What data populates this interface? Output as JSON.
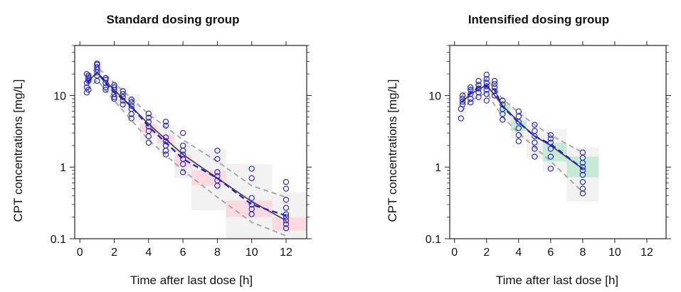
{
  "chart_data": [
    {
      "type": "scatter",
      "title": "Standard dosing group",
      "xlabel": "Time after last dose [h]",
      "ylabel": "CPT concentrations [mg/L]",
      "xlim": [
        -0.3,
        13.2
      ],
      "ylim": [
        0.1,
        50
      ],
      "yscale": "log",
      "xticks": [
        0,
        2,
        4,
        6,
        8,
        10,
        12
      ],
      "xtick_labels": [
        "0",
        "2",
        "4",
        "6",
        "8",
        "10",
        "12"
      ],
      "yticks": [
        0.1,
        1,
        10
      ],
      "ytick_labels": [
        "0.1",
        "1",
        "10"
      ],
      "shade_colors": {
        "observed_band": "#f2f2f2",
        "median_flag": "#fad9e0"
      },
      "bins": [
        {
          "x0": 0.3,
          "x1": 0.7,
          "lo": [
            11.5,
            13
          ],
          "mid": [
            13,
            19
          ],
          "hi": [
            17,
            21
          ],
          "flag": false
        },
        {
          "x0": 0.7,
          "x1": 1.3,
          "lo": [
            15,
            18
          ],
          "mid": [
            19,
            25
          ],
          "hi": [
            22,
            29
          ],
          "flag": false
        },
        {
          "x0": 1.3,
          "x1": 1.8,
          "lo": [
            10,
            12.5
          ],
          "mid": [
            12.5,
            16.5
          ],
          "hi": [
            15.5,
            19
          ],
          "flag": false
        },
        {
          "x0": 1.8,
          "x1": 2.3,
          "lo": [
            7.5,
            9.5
          ],
          "mid": [
            9.5,
            13.5
          ],
          "hi": [
            12.5,
            16
          ],
          "flag": false
        },
        {
          "x0": 2.3,
          "x1": 2.8,
          "lo": [
            6,
            7.5
          ],
          "mid": [
            7.5,
            11
          ],
          "hi": [
            9.5,
            13
          ],
          "flag": false
        },
        {
          "x0": 2.8,
          "x1": 3.5,
          "lo": [
            4.2,
            5.5
          ],
          "mid": [
            5.5,
            8.5
          ],
          "hi": [
            7.5,
            10.5
          ],
          "flag": false
        },
        {
          "x0": 3.5,
          "x1": 4.5,
          "lo": [
            2.3,
            3.0
          ],
          "mid": [
            3.0,
            4.5
          ],
          "hi": [
            4.0,
            5.5
          ],
          "flag": true
        },
        {
          "x0": 4.5,
          "x1": 5.5,
          "lo": [
            1.6,
            2.1
          ],
          "mid": [
            2.1,
            3.1
          ],
          "hi": [
            2.8,
            3.8
          ],
          "flag": true
        },
        {
          "x0": 5.5,
          "x1": 6.5,
          "lo": [
            0.7,
            1.0
          ],
          "mid": [
            1.0,
            1.7
          ],
          "hi": [
            1.5,
            2.2
          ],
          "flag": true
        },
        {
          "x0": 6.5,
          "x1": 8.5,
          "lo": [
            0.25,
            0.55
          ],
          "mid": [
            0.55,
            1.0
          ],
          "hi": [
            0.9,
            1.8
          ],
          "flag": true
        },
        {
          "x0": 8.5,
          "x1": 11.2,
          "lo": [
            0.1,
            0.2
          ],
          "mid": [
            0.2,
            0.38
          ],
          "hi": [
            0.34,
            1.1
          ],
          "flag": true
        },
        {
          "x0": 11.2,
          "x1": 13.2,
          "lo": [
            0.1,
            0.13
          ],
          "mid": [
            0.13,
            0.22
          ],
          "hi": [
            0.2,
            0.45
          ],
          "flag": true
        }
      ],
      "median_pred": {
        "x": [
          0.45,
          1.0,
          2.0,
          4.0,
          6.0,
          8.0,
          10.0,
          12.0
        ],
        "y": [
          15.5,
          21,
          12,
          4.0,
          1.5,
          0.7,
          0.33,
          0.18
        ]
      },
      "p_lo_line": {
        "x": [
          0.45,
          1.0,
          2.0,
          4.0,
          6.0,
          8.0,
          10.0,
          12.0
        ],
        "y": [
          12,
          16.5,
          8.5,
          2.4,
          0.9,
          0.38,
          0.17,
          0.11
        ]
      },
      "p_hi_line": {
        "x": [
          0.45,
          1.0,
          2.0,
          4.0,
          6.0,
          8.0,
          10.0,
          12.0
        ],
        "y": [
          18,
          25,
          15,
          5.5,
          2.4,
          1.2,
          0.55,
          0.38
        ]
      },
      "obs_median": {
        "x": [
          0.45,
          1.0,
          1.6,
          2.0,
          2.5,
          3.0,
          4.0,
          5.0,
          6.0,
          8.0,
          10.0,
          12.0
        ],
        "y": [
          15,
          21,
          14,
          11,
          9,
          7,
          3.7,
          2.2,
          1.3,
          0.7,
          0.3,
          0.21
        ]
      },
      "points": {
        "x": [
          0.4,
          0.4,
          0.4,
          0.5,
          0.5,
          0.5,
          0.5,
          0.4,
          0.5,
          1.0,
          1.0,
          1.0,
          1.0,
          1.0,
          1.0,
          1.0,
          1.5,
          1.5,
          1.5,
          1.5,
          1.5,
          2.0,
          2.0,
          2.0,
          2.0,
          2.0,
          2.0,
          2.5,
          2.5,
          2.5,
          2.5,
          2.5,
          3.0,
          3.0,
          3.0,
          3.0,
          3.0,
          3.0,
          4.0,
          4.0,
          4.0,
          4.0,
          4.0,
          4.0,
          4.0,
          5.0,
          5.0,
          5.0,
          5.0,
          5.0,
          5.0,
          5.0,
          6.0,
          6.0,
          6.0,
          6.0,
          6.0,
          6.0,
          6.0,
          8.0,
          8.0,
          8.0,
          8.0,
          8.0,
          8.0,
          10.0,
          10.0,
          10.0,
          10.0,
          10.0,
          10.0,
          12.0,
          12.0,
          12.0,
          12.0,
          12.0,
          12.0,
          12.0,
          12.0,
          12.0
        ],
        "y": [
          11,
          13,
          15,
          16,
          17,
          18,
          19,
          20,
          12,
          16,
          19,
          21,
          23,
          25,
          27,
          28,
          13,
          15,
          16.5,
          17.5,
          12,
          9.5,
          10.5,
          12,
          13,
          14,
          9,
          7.5,
          8.5,
          9.5,
          10.5,
          11.5,
          4.8,
          5.5,
          6.5,
          7.2,
          8,
          8.8,
          2.2,
          2.7,
          3.2,
          3.7,
          4.3,
          4.9,
          5.6,
          1.5,
          1.7,
          2.0,
          2.3,
          2.6,
          3.8,
          4.3,
          0.85,
          1.1,
          1.3,
          1.5,
          1.7,
          2.0,
          3.0,
          0.55,
          0.65,
          0.75,
          0.85,
          1.3,
          1.7,
          0.22,
          0.26,
          0.3,
          0.37,
          0.7,
          0.95,
          0.14,
          0.16,
          0.18,
          0.2,
          0.22,
          0.27,
          0.35,
          0.5,
          0.62
        ]
      }
    },
    {
      "type": "scatter",
      "title": "Intensified dosing group",
      "xlabel": "Time after last dose [h]",
      "ylabel": "CPT concentrations [mg/L]",
      "xlim": [
        -0.3,
        13.2
      ],
      "ylim": [
        0.1,
        50
      ],
      "yscale": "log",
      "xticks": [
        0,
        2,
        4,
        6,
        8,
        10,
        12
      ],
      "xtick_labels": [
        "0",
        "2",
        "4",
        "6",
        "8",
        "10",
        "12"
      ],
      "yticks": [
        0.1,
        1,
        10
      ],
      "ytick_labels": [
        "0.1",
        "1",
        "10"
      ],
      "shade_colors": {
        "observed_band": "#f2f2f2",
        "median_flag": "#c6ead6"
      },
      "bins": [
        {
          "x0": 0.3,
          "x1": 0.7,
          "lo": [
            5.5,
            7
          ],
          "mid": [
            7,
            9.5
          ],
          "hi": [
            9,
            11.5
          ],
          "flag": false
        },
        {
          "x0": 0.7,
          "x1": 1.3,
          "lo": [
            7.5,
            9
          ],
          "mid": [
            9,
            11.5
          ],
          "hi": [
            11,
            13.5
          ],
          "flag": false
        },
        {
          "x0": 1.3,
          "x1": 1.8,
          "lo": [
            9.5,
            11
          ],
          "mid": [
            11,
            14
          ],
          "hi": [
            13,
            16
          ],
          "flag": false
        },
        {
          "x0": 1.8,
          "x1": 2.3,
          "lo": [
            10,
            12
          ],
          "mid": [
            12,
            15.5
          ],
          "hi": [
            14.5,
            18
          ],
          "flag": false
        },
        {
          "x0": 2.3,
          "x1": 2.8,
          "lo": [
            9,
            10.5
          ],
          "mid": [
            10.5,
            13.5
          ],
          "hi": [
            12.5,
            15.5
          ],
          "flag": false
        },
        {
          "x0": 2.8,
          "x1": 3.5,
          "lo": [
            4.2,
            5.5
          ],
          "mid": [
            5.5,
            8.5
          ],
          "hi": [
            7.5,
            9.5
          ],
          "flag": true
        },
        {
          "x0": 3.5,
          "x1": 4.5,
          "lo": [
            2.5,
            3.2
          ],
          "mid": [
            3.2,
            4.8
          ],
          "hi": [
            4.5,
            6.0
          ],
          "flag": true
        },
        {
          "x0": 4.5,
          "x1": 5.5,
          "lo": [
            1.3,
            2.0
          ],
          "mid": [
            2.0,
            2.8
          ],
          "hi": [
            2.7,
            3.8
          ],
          "flag": false
        },
        {
          "x0": 5.5,
          "x1": 7.0,
          "lo": [
            0.85,
            1.2
          ],
          "mid": [
            1.2,
            2.2
          ],
          "hi": [
            2.2,
            3.4
          ],
          "flag": true
        },
        {
          "x0": 7.0,
          "x1": 9.0,
          "lo": [
            0.33,
            0.72
          ],
          "mid": [
            0.72,
            1.4
          ],
          "hi": [
            1.4,
            1.9
          ],
          "flag": true
        }
      ],
      "median_pred": {
        "x": [
          0.45,
          1.0,
          2.0,
          3.0,
          4.0,
          5.0,
          6.0,
          8.0
        ],
        "y": [
          8,
          10.5,
          14,
          7.2,
          4.3,
          2.7,
          2.0,
          0.95
        ]
      },
      "p_lo_line": {
        "x": [
          0.45,
          1.0,
          2.0,
          3.0,
          4.0,
          5.0,
          6.0,
          8.0
        ],
        "y": [
          6,
          8.5,
          11,
          5,
          3.0,
          1.9,
          1.2,
          0.45
        ]
      },
      "p_hi_line": {
        "x": [
          0.45,
          1.0,
          2.0,
          3.0,
          4.0,
          5.0,
          6.0,
          8.0
        ],
        "y": [
          10,
          12.5,
          17,
          9,
          5.8,
          3.9,
          2.8,
          1.6
        ]
      },
      "obs_median": {
        "x": [
          0.45,
          1.0,
          1.5,
          2.0,
          2.5,
          3.0,
          4.0,
          5.0,
          6.0,
          8.0
        ],
        "y": [
          8,
          11,
          13,
          13.5,
          12,
          7,
          4.2,
          2.7,
          2.1,
          0.95
        ]
      },
      "points": {
        "x": [
          0.4,
          0.4,
          0.5,
          0.5,
          0.5,
          0.5,
          1.0,
          1.0,
          1.0,
          1.0,
          1.0,
          1.5,
          1.5,
          1.5,
          1.5,
          1.5,
          2.0,
          2.0,
          2.0,
          2.0,
          2.0,
          2.0,
          2.0,
          2.5,
          2.5,
          2.5,
          2.5,
          2.5,
          3.0,
          3.0,
          3.0,
          3.0,
          3.0,
          4.0,
          4.0,
          4.0,
          4.0,
          4.0,
          4.0,
          5.0,
          5.0,
          5.0,
          5.0,
          5.0,
          5.0,
          6.0,
          6.0,
          6.0,
          6.0,
          6.0,
          6.0,
          8.0,
          8.0,
          8.0,
          8.0,
          8.0,
          8.0,
          8.0,
          8.0,
          8.0
        ],
        "y": [
          4.8,
          6.5,
          7.5,
          8.2,
          9,
          10,
          8,
          9,
          10.5,
          12,
          13,
          9.5,
          11,
          12.5,
          14,
          16,
          8.5,
          10.5,
          12,
          13.5,
          15,
          17,
          19.5,
          10,
          11.5,
          13,
          14.5,
          16,
          4.6,
          5.5,
          6.5,
          7.5,
          8.5,
          2.3,
          2.8,
          3.5,
          4.3,
          5.1,
          6.0,
          1.4,
          1.8,
          2.2,
          2.7,
          3.2,
          3.9,
          0.95,
          1.4,
          1.8,
          2.2,
          2.5,
          2.8,
          0.43,
          0.5,
          0.62,
          0.78,
          0.9,
          1.0,
          1.15,
          1.35,
          1.6
        ]
      }
    }
  ]
}
